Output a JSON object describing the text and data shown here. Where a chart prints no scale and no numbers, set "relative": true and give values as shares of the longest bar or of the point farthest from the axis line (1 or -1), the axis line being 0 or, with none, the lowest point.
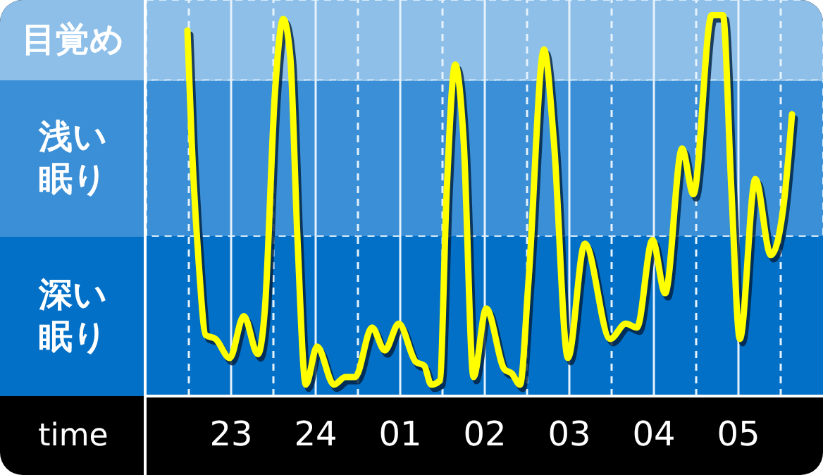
{
  "chart_data": {
    "type": "line",
    "relative": true,
    "xlabel": "time",
    "x": [
      "--01-01T22:29",
      "--01-01T22:32",
      "--01-01T22:37",
      "--01-01T22:42",
      "--01-01T22:49",
      "--01-01T22:59",
      "--01-01T23:09",
      "--01-01T23:19",
      "--01-01T23:24",
      "--01-01T23:31",
      "--01-01T23:37",
      "--01-01T23:42",
      "--01-01T23:47",
      "--01-01T23:53",
      "--01-02T00:01",
      "--01-02T00:13",
      "--01-02T00:21",
      "--01-02T00:28",
      "--01-02T00:40",
      "--01-02T00:49",
      "--01-02T00:59",
      "--01-02T01:11",
      "--01-02T01:17",
      "--01-02T01:22",
      "--01-02T01:28",
      "--01-02T01:33",
      "--01-02T01:39",
      "--01-02T01:45",
      "--01-02T01:52",
      "--01-02T02:01",
      "--01-02T02:14",
      "--01-02T02:19",
      "--01-02T02:25",
      "--01-02T02:31",
      "--01-02T02:42",
      "--01-02T02:49",
      "--01-02T02:59",
      "--01-02T03:11",
      "--01-02T03:29",
      "--01-02T03:40",
      "--01-02T03:48",
      "--01-02T03:59",
      "--01-02T04:08",
      "--01-02T04:20",
      "--01-02T04:28",
      "--01-02T04:41",
      "--01-02T04:49",
      "--01-02T04:55",
      "--01-02T05:01",
      "--01-02T05:12",
      "--01-02T05:23",
      "--01-02T05:32",
      "--01-02T05:38"
    ],
    "series": [
      {
        "color": "#ffff00",
        "values": [
          0.96,
          0.67,
          0.35,
          0.16,
          0.15,
          0.1,
          0.21,
          0.11,
          0.23,
          0.79,
          0.99,
          0.89,
          0.42,
          0.03,
          0.13,
          0.03,
          0.05,
          0.05,
          0.18,
          0.12,
          0.19,
          0.09,
          0.08,
          0.03,
          0.04,
          0.54,
          0.87,
          0.67,
          0.05,
          0.23,
          0.07,
          0.06,
          0.03,
          0.3,
          0.91,
          0.67,
          0.1,
          0.4,
          0.15,
          0.19,
          0.18,
          0.41,
          0.27,
          0.65,
          0.53,
          1,
          1,
          0.54,
          0.15,
          0.57,
          0.37,
          0.5,
          0.74
        ]
      }
    ],
    "xlim": [
      "--01-01T22:00",
      "--01-02T06:00"
    ],
    "xticks": [
      {
        "value": "--01-01T22:30",
        "label": null
      },
      {
        "value": "--01-01T23:00",
        "label": "23"
      },
      {
        "value": "--01-01T23:30",
        "label": null
      },
      {
        "value": "--01-02T00:00",
        "label": "24"
      },
      {
        "value": "--01-02T00:30",
        "label": null
      },
      {
        "value": "--01-02T01:00",
        "label": "01"
      },
      {
        "value": "--01-02T01:30",
        "label": null
      },
      {
        "value": "--01-02T02:00",
        "label": "02"
      },
      {
        "value": "--01-02T02:30",
        "label": null
      },
      {
        "value": "--01-02T03:00",
        "label": "03"
      },
      {
        "value": "--01-02T03:30",
        "label": null
      },
      {
        "value": "--01-02T04:00",
        "label": "04"
      },
      {
        "value": "--01-02T04:30",
        "label": null
      },
      {
        "value": "--01-02T05:00",
        "label": "05"
      },
      {
        "value": "--01-02T05:30",
        "label": null
      }
    ],
    "bands": [
      {
        "axis": "y",
        "from": 0,
        "to": 0.42,
        "label": "深い眠り",
        "color": "#0270c6"
      },
      {
        "axis": "y",
        "from": 0.42,
        "to": 0.83,
        "label": "浅い眠り",
        "color": "#3a8fd6"
      },
      {
        "axis": "y",
        "from": 0.83,
        "to": 1.04,
        "label": "目覚め",
        "color": "#8dbfe8"
      }
    ],
    "grid": "x",
    "marker": "none",
    "line_style": "solid",
    "legend": false
  }
}
